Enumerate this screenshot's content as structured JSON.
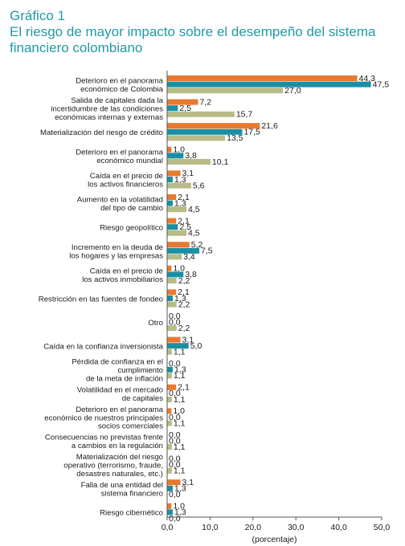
{
  "figure": {
    "label": "Gráfico 1",
    "title": "El riesgo de mayor impacto sobre el desempeño del sistema financiero colombiano"
  },
  "colors": {
    "series1": "#e8792e",
    "series2": "#1a8fa2",
    "series3": "#b8bb86",
    "axis": "#555555",
    "title": "#1f9aa5"
  },
  "chart_data": {
    "type": "bar",
    "orientation": "horizontal",
    "xlabel": "(porcentaje)",
    "xlim": [
      0,
      50
    ],
    "xticks": [
      "0,0",
      "10,0",
      "20,0",
      "30,0",
      "40,0",
      "50,0"
    ],
    "grid": false,
    "categories": [
      [
        "Deterioro en el panorama",
        "económico de Colombia"
      ],
      [
        "Salida de capitales dada la",
        "incertidumbre de las condiciones",
        "económicas internas y externas"
      ],
      [
        "Materialización del riesgo de crédito"
      ],
      [
        "Deterioro en el panorama",
        "económico mundial"
      ],
      [
        "Caída en el precio de",
        "los activos financieros"
      ],
      [
        "Aumento en la volatilidad",
        "del tipo de cambio"
      ],
      [
        "Riesgo geopolítico"
      ],
      [
        "Incremento en la deuda de",
        "los hogares y las empresas"
      ],
      [
        "Caída en el precio de",
        "los activos inmobiliarios"
      ],
      [
        "Restricción en las fuentes de fondeo"
      ],
      [
        "Otro"
      ],
      [
        "Caída en la confianza inversionista"
      ],
      [
        "Pérdida de confianza en el",
        "cumplimiento",
        "de la meta de inflación"
      ],
      [
        "Volatilidad en el mercado",
        "de capitales"
      ],
      [
        "Deterioro en el panorama",
        "económico de nuestros principales",
        "socios comerciales"
      ],
      [
        "Consecuencias no previstas frente",
        "a cambios en la regulación"
      ],
      [
        "Materialización del riesgo",
        "operativo (terrorismo, fraude,",
        "desastres naturales, etc.)"
      ],
      [
        "Falla de una entidad del",
        "sistema financiero"
      ],
      [
        "Riesgo cibernético"
      ]
    ],
    "series": [
      {
        "values": [
          44.3,
          7.2,
          21.6,
          1.0,
          3.1,
          2.1,
          2.1,
          5.2,
          1.0,
          2.1,
          0.0,
          3.1,
          0.0,
          2.1,
          1.0,
          0.0,
          0.0,
          3.1,
          1.0
        ]
      },
      {
        "values": [
          47.5,
          2.5,
          17.5,
          3.8,
          1.3,
          1.3,
          2.5,
          7.5,
          3.8,
          1.3,
          0.0,
          5.0,
          1.3,
          0.0,
          0.0,
          0.0,
          0.0,
          1.3,
          1.3
        ]
      },
      {
        "values": [
          27.0,
          15.7,
          13.5,
          10.1,
          5.6,
          4.5,
          4.5,
          3.4,
          2.2,
          2.2,
          2.2,
          1.1,
          1.1,
          1.1,
          1.1,
          1.1,
          1.1,
          0.0,
          0.0
        ]
      }
    ],
    "value_labels": [
      [
        "44,3",
        "7,2",
        "21,6",
        "1,0",
        "3,1",
        "2,1",
        "2,1",
        "5,2",
        "1,0",
        "2,1",
        "0,0",
        "3,1",
        "0,0",
        "2,1",
        "1,0",
        "0,0",
        "0,0",
        "3,1",
        "1,0"
      ],
      [
        "47,5",
        "2,5",
        "17,5",
        "3,8",
        "1,3",
        "1,3",
        "2,5",
        "7,5",
        "3,8",
        "1,3",
        "0,0",
        "5,0",
        "1,3",
        "0,0",
        "0,0",
        "0,0",
        "0,0",
        "1,3",
        "1,3"
      ],
      [
        "27,0",
        "15,7",
        "13,5",
        "10,1",
        "5,6",
        "4,5",
        "4,5",
        "3,4",
        "2,2",
        "2,2",
        "2,2",
        "1,1",
        "1,1",
        "1,1",
        "1,1",
        "1,1",
        "1,1",
        "0,0",
        "0,0"
      ]
    ]
  }
}
